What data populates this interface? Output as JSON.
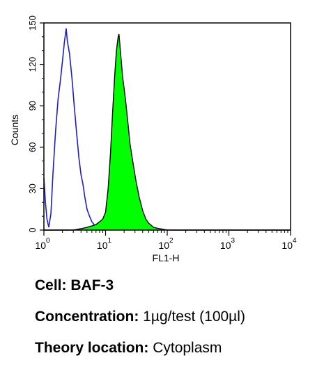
{
  "chart_data": {
    "type": "area",
    "xlabel": "FL1-H",
    "ylabel": "Counts",
    "x_scale": "log",
    "xlim": [
      1,
      10000
    ],
    "ylim": [
      0,
      150
    ],
    "x_ticks": [
      {
        "value": 1,
        "base": "10",
        "exp": "0"
      },
      {
        "value": 10,
        "base": "10",
        "exp": "1"
      },
      {
        "value": 100,
        "base": "10",
        "exp": "2"
      },
      {
        "value": 1000,
        "base": "10",
        "exp": "3"
      },
      {
        "value": 10000,
        "base": "10",
        "exp": "4"
      }
    ],
    "y_ticks": [
      "0",
      "30",
      "60",
      "90",
      "120",
      "150"
    ],
    "grid": false,
    "series": [
      {
        "color": "#1e1ec8",
        "fill": "none",
        "points": [
          [
            1.0,
            38
          ],
          [
            1.06,
            20
          ],
          [
            1.12,
            8
          ],
          [
            1.2,
            2
          ],
          [
            1.3,
            12
          ],
          [
            1.4,
            40
          ],
          [
            1.55,
            72
          ],
          [
            1.7,
            95
          ],
          [
            1.85,
            108
          ],
          [
            2.0,
            122
          ],
          [
            2.15,
            136
          ],
          [
            2.3,
            146
          ],
          [
            2.4,
            137
          ],
          [
            2.6,
            128
          ],
          [
            2.85,
            110
          ],
          [
            3.1,
            90
          ],
          [
            3.4,
            70
          ],
          [
            3.7,
            52
          ],
          [
            4.0,
            40
          ],
          [
            4.3,
            33
          ],
          [
            4.6,
            24
          ],
          [
            5.0,
            15
          ],
          [
            5.5,
            10
          ],
          [
            6.0,
            6
          ],
          [
            6.8,
            3
          ],
          [
            7.8,
            1
          ],
          [
            9.0,
            0
          ],
          [
            10.0,
            0
          ]
        ]
      },
      {
        "color": "#00ff00",
        "fill": "#00ff00",
        "points": [
          [
            1.0,
            0
          ],
          [
            3.0,
            0
          ],
          [
            4.0,
            1
          ],
          [
            5.0,
            2
          ],
          [
            6.0,
            3
          ],
          [
            7.0,
            4
          ],
          [
            8.0,
            6
          ],
          [
            9.0,
            8
          ],
          [
            10.0,
            13
          ],
          [
            11.0,
            30
          ],
          [
            12.0,
            55
          ],
          [
            13.0,
            85
          ],
          [
            14.0,
            110
          ],
          [
            15.0,
            130
          ],
          [
            16.0,
            140
          ],
          [
            16.5,
            142
          ],
          [
            17.0,
            135
          ],
          [
            18.0,
            122
          ],
          [
            19.0,
            110
          ],
          [
            21.0,
            95
          ],
          [
            23.0,
            78
          ],
          [
            25.0,
            62
          ],
          [
            28.0,
            48
          ],
          [
            31.0,
            36
          ],
          [
            35.0,
            24
          ],
          [
            40.0,
            14
          ],
          [
            45.0,
            8
          ],
          [
            50.0,
            5
          ],
          [
            60.0,
            2
          ],
          [
            75.0,
            1
          ],
          [
            100.0,
            0
          ],
          [
            10000.0,
            0
          ]
        ]
      }
    ]
  },
  "info": {
    "cell_label": "Cell:",
    "cell_value": "BAF-3",
    "conc_label": "Concentration:",
    "conc_value": "1µg/test (100µl)",
    "loc_label": "Theory location:",
    "loc_value": "Cytoplasm"
  }
}
